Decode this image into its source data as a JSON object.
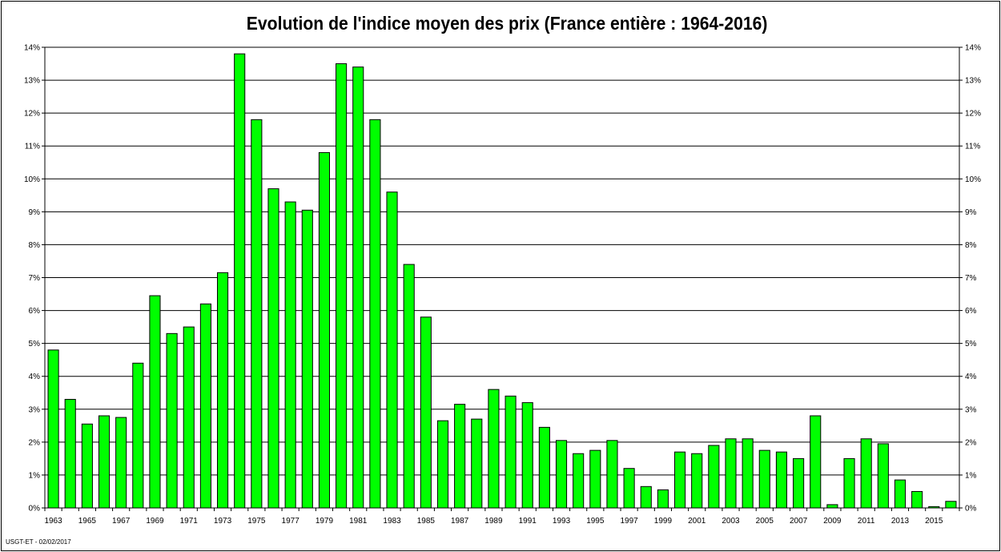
{
  "chart_data": {
    "type": "bar",
    "title": "Evolution de l'indice moyen des prix (France entière : 1964-2016)",
    "footer": "USGT-ET - 02/02/2017",
    "xlabel": "",
    "ylabel": "",
    "ylim": [
      0,
      14
    ],
    "y_ticks": [
      "0%",
      "1%",
      "2%",
      "3%",
      "4%",
      "5%",
      "6%",
      "7%",
      "8%",
      "9%",
      "10%",
      "11%",
      "12%",
      "13%",
      "14%"
    ],
    "y_tick_values": [
      0,
      1,
      2,
      3,
      4,
      5,
      6,
      7,
      8,
      9,
      10,
      11,
      12,
      13,
      14
    ],
    "grid": true,
    "legend": "none",
    "bar_color": "#00ff00",
    "categories": [
      "1963",
      "1964",
      "1965",
      "1966",
      "1967",
      "1968",
      "1969",
      "1970",
      "1971",
      "1972",
      "1973",
      "1974",
      "1975",
      "1976",
      "1977",
      "1978",
      "1979",
      "1980",
      "1981",
      "1982",
      "1983",
      "1984",
      "1985",
      "1986",
      "1987",
      "1988",
      "1989",
      "1990",
      "1991",
      "1992",
      "1993",
      "1994",
      "1995",
      "1996",
      "1997",
      "1998",
      "1999",
      "2000",
      "2001",
      "2002",
      "2003",
      "2004",
      "2005",
      "2006",
      "2007",
      "2008",
      "2009",
      "2010",
      "2011",
      "2012",
      "2013",
      "2014",
      "2015",
      "2016"
    ],
    "x_tick_labels": [
      "1963",
      "1965",
      "1967",
      "1969",
      "1971",
      "1973",
      "1975",
      "1977",
      "1979",
      "1981",
      "1983",
      "1985",
      "1987",
      "1989",
      "1991",
      "1993",
      "1995",
      "1997",
      "1999",
      "2001",
      "2003",
      "2005",
      "2007",
      "2009",
      "2011",
      "2013",
      "2015"
    ],
    "values": [
      4.8,
      3.3,
      2.55,
      2.8,
      2.75,
      4.4,
      6.45,
      5.3,
      5.5,
      6.2,
      7.15,
      13.8,
      11.8,
      9.7,
      9.3,
      9.05,
      10.8,
      13.5,
      13.4,
      11.8,
      9.6,
      7.4,
      5.8,
      2.65,
      3.15,
      2.7,
      3.6,
      3.4,
      3.2,
      2.45,
      2.05,
      1.65,
      1.75,
      2.05,
      1.2,
      0.65,
      0.55,
      1.7,
      1.65,
      1.9,
      2.1,
      2.1,
      1.75,
      1.7,
      1.5,
      2.8,
      0.1,
      1.5,
      2.1,
      1.95,
      0.85,
      0.5,
      0.04,
      0.2
    ]
  }
}
